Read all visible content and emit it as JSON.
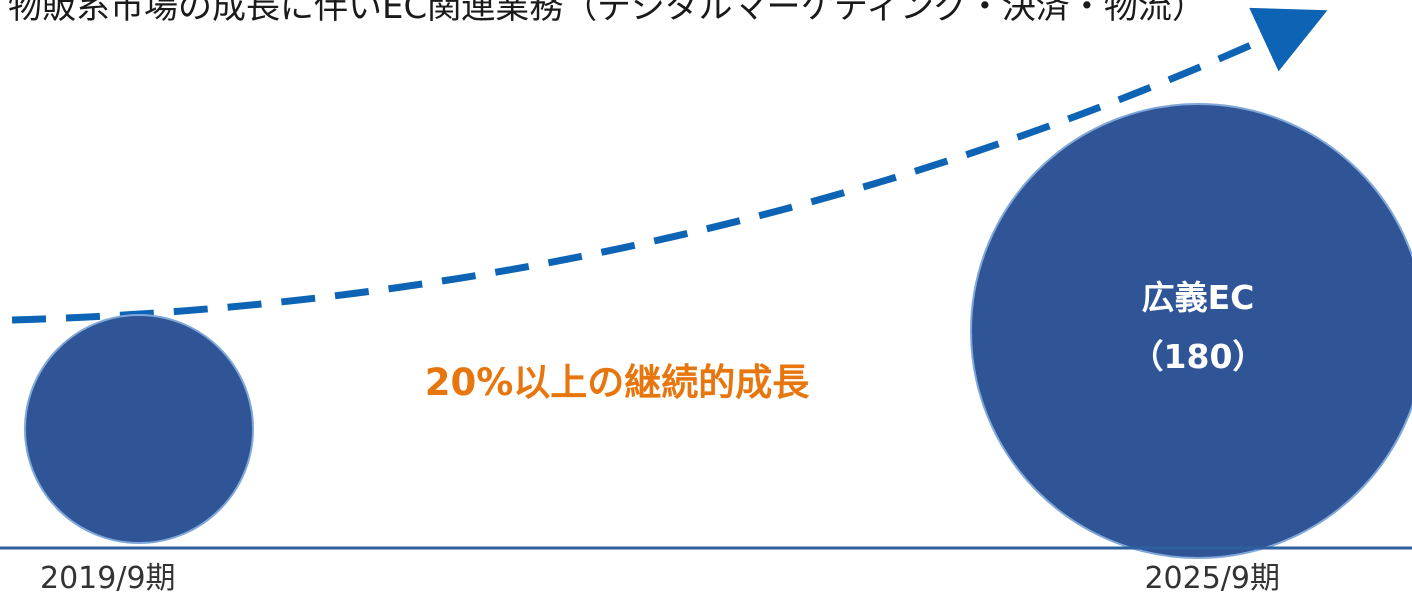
{
  "header": {
    "text": "物販系市場の成長に伴いEC関連業務（デジタルマーケティング・決済・物流）"
  },
  "growth": {
    "label": "20%以上の継続的成長",
    "color": "#e8760e"
  },
  "circles": {
    "start": {
      "label": "",
      "value": ""
    },
    "end": {
      "label": "広義EC",
      "value": "（180）"
    },
    "fill": "#2f5597",
    "stroke": "#7fa7d9"
  },
  "trend": {
    "color": "#0e64b4"
  },
  "axis": {
    "start_label": "2019/9期",
    "end_label": "2025/9期",
    "color": "#2e5f9e"
  }
}
